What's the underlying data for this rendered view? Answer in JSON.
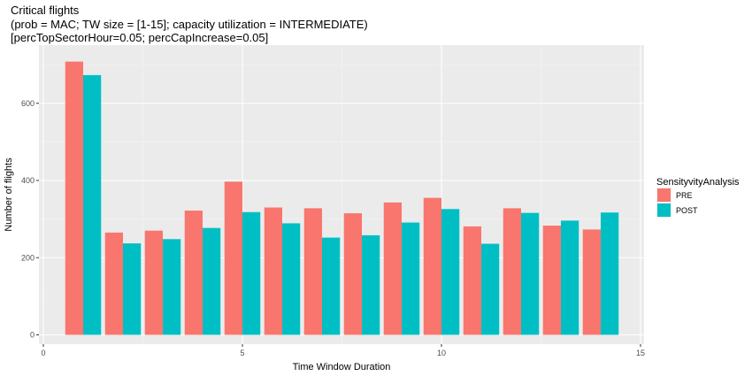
{
  "chart_data": {
    "type": "bar",
    "title": "Critical flights",
    "subtitle_lines": [
      "(prob = MAC; TW size = [1-15]; capacity utilization = INTERMEDIATE)",
      "[percTopSectorHour=0.05; percCapIncrease=0.05]"
    ],
    "xlabel": "Time Window Duration",
    "ylabel": "Number of flights",
    "xlim": [
      0,
      15
    ],
    "ylim": [
      0,
      720
    ],
    "xticks": [
      0,
      5,
      10,
      15
    ],
    "yticks": [
      0,
      200,
      400,
      600
    ],
    "grid": true,
    "legend": {
      "title": "SensityvityAnalysis",
      "placement": "right"
    },
    "x": [
      1,
      2,
      3,
      4,
      5,
      6,
      7,
      8,
      9,
      10,
      11,
      12,
      13,
      14
    ],
    "series": [
      {
        "name": "PRE",
        "color": "#F8766D",
        "values": [
          708,
          265,
          270,
          322,
          397,
          330,
          328,
          315,
          343,
          355,
          281,
          328,
          283,
          273
        ]
      },
      {
        "name": "POST",
        "color": "#00BFC4",
        "values": [
          673,
          237,
          248,
          277,
          318,
          289,
          252,
          258,
          291,
          326,
          236,
          316,
          296,
          317
        ]
      }
    ]
  }
}
